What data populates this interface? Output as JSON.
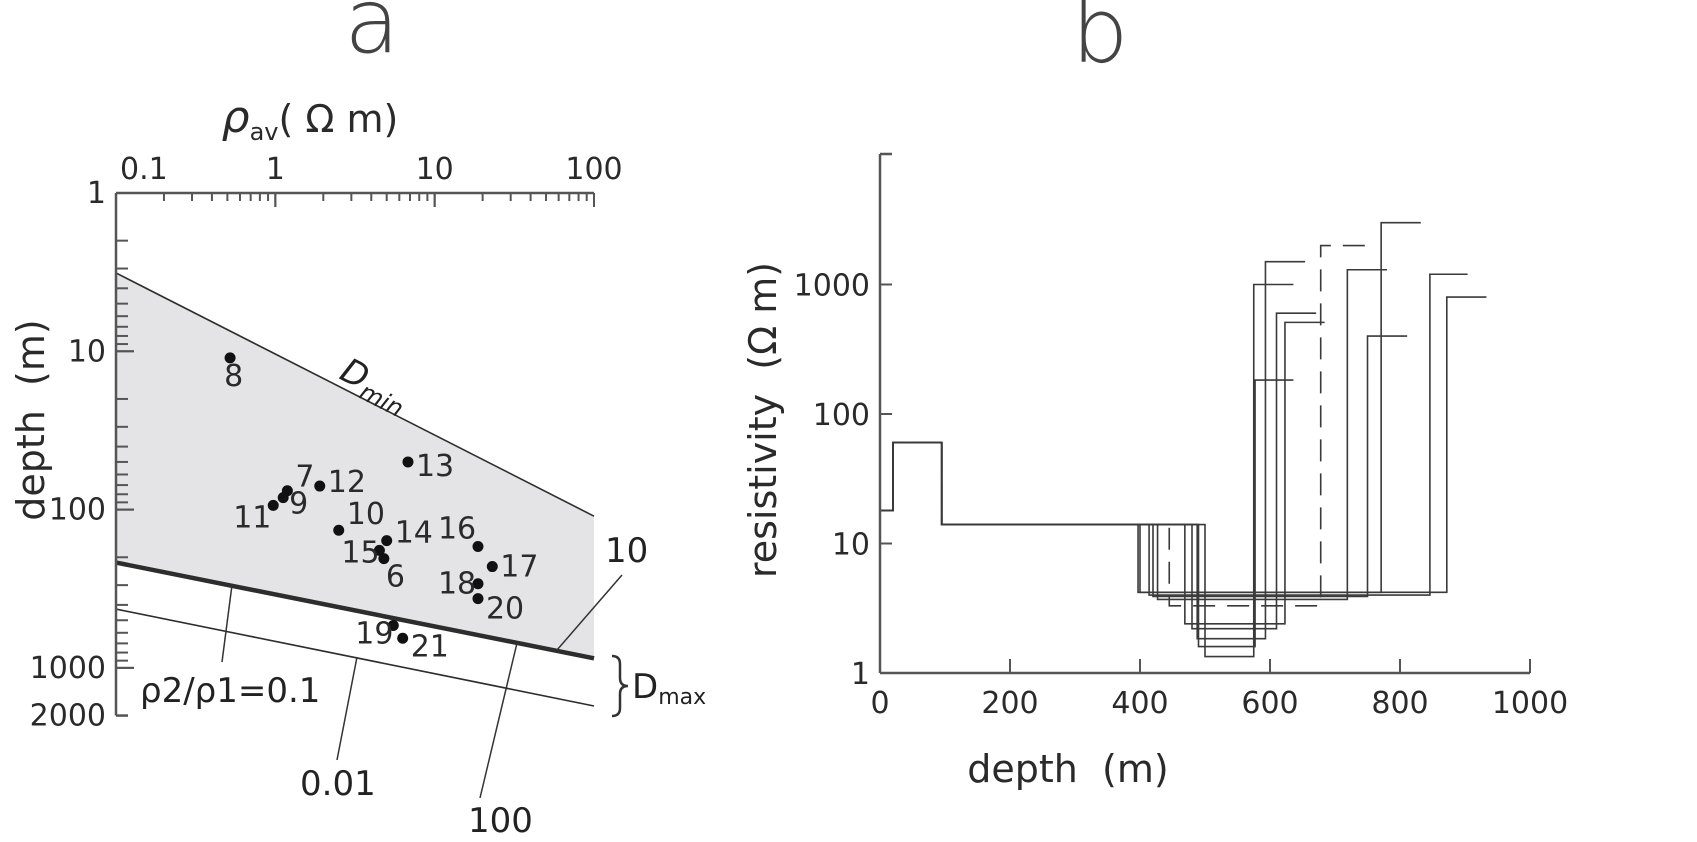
{
  "panels": {
    "a": "a",
    "b": "b"
  },
  "colors": {
    "shade": "#e4e4e6",
    "line": "#2d2d2d",
    "axis": "#555555"
  },
  "chart_data": [
    {
      "id": "a",
      "type": "scatter",
      "title": "a",
      "xlabel": "ρav(Ω m)",
      "xlabel_main": "ρ",
      "xlabel_sub": "av",
      "xlabel_unit": "( Ω m)",
      "ylabel": "depth  (m)",
      "xscale": "log",
      "yscale": "log",
      "yinverted": true,
      "xlim": [
        0.1,
        100
      ],
      "ylim": [
        1,
        2000
      ],
      "xticks": [
        {
          "v": 0.1,
          "label": "0.1"
        },
        {
          "v": 1,
          "label": "1"
        },
        {
          "v": 10,
          "label": "10"
        },
        {
          "v": 100,
          "label": "100"
        }
      ],
      "yticks": [
        {
          "v": 1,
          "label": "1"
        },
        {
          "v": 10,
          "label": "10"
        },
        {
          "v": 100,
          "label": "100"
        },
        {
          "v": 1000,
          "label": "1000"
        },
        {
          "v": 2000,
          "label": "2000"
        }
      ],
      "points": [
        {
          "label": "8",
          "x": 0.52,
          "y": 11
        },
        {
          "label": "13",
          "x": 6.8,
          "y": 50
        },
        {
          "label": "7",
          "x": 1.19,
          "y": 76
        },
        {
          "label": "9",
          "x": 1.12,
          "y": 84
        },
        {
          "label": "11",
          "x": 0.97,
          "y": 94
        },
        {
          "label": "12",
          "x": 1.9,
          "y": 71
        },
        {
          "label": "10",
          "x": 2.5,
          "y": 135
        },
        {
          "label": "14",
          "x": 5.0,
          "y": 157
        },
        {
          "label": "15",
          "x": 4.5,
          "y": 181
        },
        {
          "label": "6",
          "x": 4.8,
          "y": 204
        },
        {
          "label": "16",
          "x": 18.7,
          "y": 171
        },
        {
          "label": "17",
          "x": 23,
          "y": 229
        },
        {
          "label": "18",
          "x": 18.7,
          "y": 294
        },
        {
          "label": "20",
          "x": 18.7,
          "y": 365
        },
        {
          "label": "19",
          "x": 5.5,
          "y": 540
        },
        {
          "label": "21",
          "x": 6.3,
          "y": 650
        }
      ],
      "lines": [
        {
          "name": "Dmin",
          "label_main": "D",
          "label_sub": "min",
          "from": [
            0.1,
            3.2
          ],
          "to": [
            100,
            110
          ]
        },
        {
          "name": "ratio-0.1",
          "label": "ρ2/ρ1=0.1",
          "from": [
            0.1,
            216
          ],
          "to": [
            100,
            870
          ]
        },
        {
          "name": "ratio-0.01",
          "label": "0.01",
          "from": [
            0.1,
            425
          ],
          "to": [
            100,
            1740
          ]
        }
      ],
      "annotations": {
        "ratio_10": "10",
        "ratio_100": "100",
        "dmax_main": "D",
        "dmax_sub": "max",
        "ratio_main_label": "ρ2/ρ1=0.1"
      },
      "shaded_region": "between Dmin and ρ2/ρ1=0.1"
    },
    {
      "id": "b",
      "type": "line",
      "title": "b",
      "xlabel": "depth  (m)",
      "ylabel": "resistivity  (Ω m)",
      "xscale": "linear",
      "yscale": "log",
      "xlim": [
        0,
        1000
      ],
      "ylim": [
        1,
        10000
      ],
      "xticks": [
        {
          "v": 0,
          "label": "0"
        },
        {
          "v": 200,
          "label": "200"
        },
        {
          "v": 400,
          "label": "400"
        },
        {
          "v": 600,
          "label": "600"
        },
        {
          "v": 800,
          "label": "800"
        },
        {
          "v": 1000,
          "label": "1000"
        }
      ],
      "yticks": [
        {
          "v": 1,
          "label": "1"
        },
        {
          "v": 10,
          "label": "10"
        },
        {
          "v": 100,
          "label": "100"
        },
        {
          "v": 1000,
          "label": "1000"
        }
      ],
      "common_layers": [
        [
          18,
          20
        ],
        [
          60,
          95
        ],
        [
          14,
          null
        ]
      ],
      "series": [
        {
          "name": "model-1",
          "drop": 397,
          "low": 4.2,
          "rise": 872,
          "top": 800,
          "end": 933,
          "dashed": false
        },
        {
          "name": "model-2",
          "drop": 414,
          "low": 4.0,
          "rise": 846,
          "top": 1200,
          "end": 904,
          "dashed": false
        },
        {
          "name": "model-3",
          "drop": 427,
          "low": 3.7,
          "rise": 719,
          "top": 1300,
          "end": 780,
          "dashed": false
        },
        {
          "name": "model-4",
          "drop": 445,
          "low": 3.3,
          "rise": 678,
          "top": 2000,
          "end": 758,
          "dashed": true
        },
        {
          "name": "model-5",
          "drop": 469,
          "low": 2.4,
          "rise": 623,
          "top": 510,
          "end": 684,
          "dashed": false
        },
        {
          "name": "model-6",
          "drop": 480,
          "low": 2.2,
          "rise": 610,
          "top": 600,
          "end": 671,
          "dashed": false
        },
        {
          "name": "model-7",
          "drop": 488,
          "low": 1.84,
          "rise": 593,
          "top": 1500,
          "end": 654,
          "dashed": false
        },
        {
          "name": "model-8",
          "drop": 500,
          "low": 1.34,
          "rise": 575,
          "top": 1000,
          "end": 636,
          "dashed": false
        },
        {
          "name": "model-9",
          "drop": 400,
          "low": 4.2,
          "rise": 771,
          "top": 3000,
          "end": 832,
          "dashed": false
        },
        {
          "name": "model-10",
          "drop": 420,
          "low": 3.9,
          "rise": 750,
          "top": 400,
          "end": 811,
          "dashed": false
        },
        {
          "name": "model-11",
          "drop": 490,
          "low": 1.6,
          "rise": 577,
          "top": 183,
          "end": 636,
          "dashed": false
        }
      ]
    }
  ]
}
